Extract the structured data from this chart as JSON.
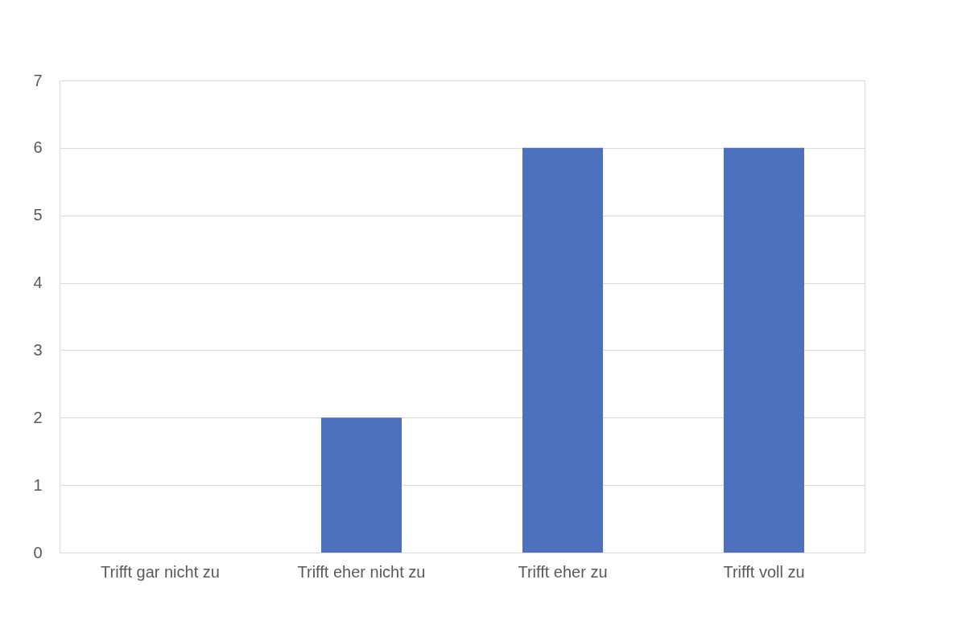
{
  "chart_data": {
    "type": "bar",
    "categories": [
      "Trifft gar nicht zu",
      "Trifft eher nicht zu",
      "Trifft eher zu",
      "Trifft voll zu"
    ],
    "values": [
      0,
      2,
      6,
      6
    ],
    "color": "#4e71be",
    "ylim": [
      0,
      7
    ],
    "yticks": [
      0,
      1,
      2,
      3,
      4,
      5,
      6,
      7
    ],
    "grid": "y"
  }
}
